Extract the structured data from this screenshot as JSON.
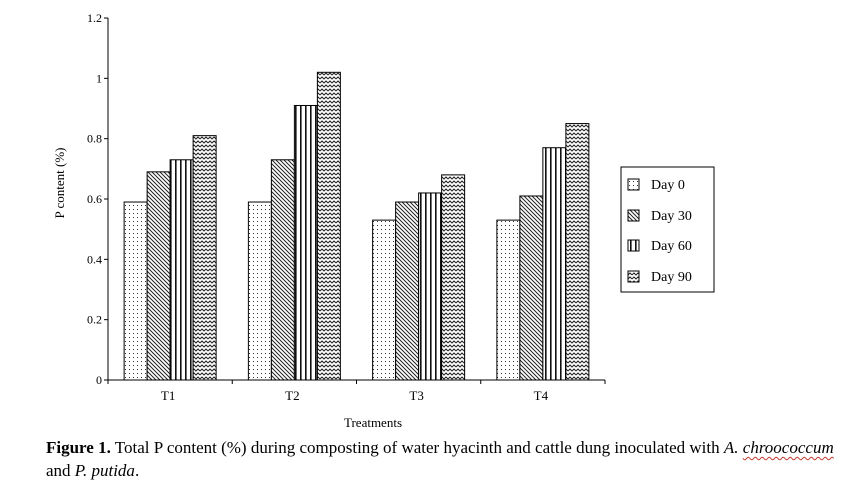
{
  "chart_data": {
    "type": "bar",
    "categories": [
      "T1",
      "T2",
      "T3",
      "T4"
    ],
    "series": [
      {
        "name": "Day 0",
        "values": [
          0.59,
          0.59,
          0.53,
          0.53
        ]
      },
      {
        "name": "Day 30",
        "values": [
          0.69,
          0.73,
          0.59,
          0.61
        ]
      },
      {
        "name": "Day 60",
        "values": [
          0.73,
          0.91,
          0.62,
          0.77
        ]
      },
      {
        "name": "Day 90",
        "values": [
          0.81,
          1.02,
          0.68,
          0.85
        ]
      }
    ],
    "ylim": [
      0,
      1.2
    ],
    "yticks": [
      "0",
      "0.2",
      "0.4",
      "0.6",
      "0.8",
      "1",
      "1.2"
    ],
    "ytick_values": [
      0,
      0.2,
      0.4,
      0.6,
      0.8,
      1,
      1.2
    ],
    "ylabel": "P content (%)",
    "xlabel": "Treatments",
    "legend_position": "right",
    "grid": false
  },
  "caption": {
    "label": "Figure 1.",
    "text": " Total P content (%) during composting of water hyacinth and cattle dung inoculated with ",
    "species1_a": "A.",
    "species1_b": "chroococcum",
    "conj": " and ",
    "species2": "P. putida",
    "end": "."
  }
}
